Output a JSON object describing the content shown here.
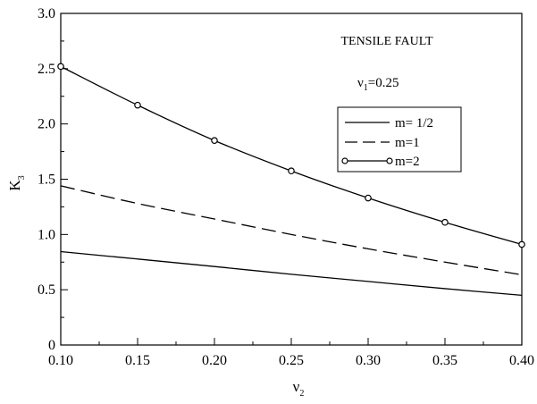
{
  "annotation": {
    "title": "TENSILE FAULT",
    "param_symbol": "ν",
    "param_sub": "1",
    "param_value": "=0.25"
  },
  "chart_data": {
    "type": "line",
    "xlabel_symbol": "ν",
    "xlabel_sub": "2",
    "ylabel_symbol": "K",
    "ylabel_sub": "3",
    "xlim": [
      0.1,
      0.4
    ],
    "ylim": [
      0,
      3.0
    ],
    "xticks": [
      "0.10",
      "0.15",
      "0.20",
      "0.25",
      "0.30",
      "0.35",
      "0.40"
    ],
    "yticks": [
      "0",
      "0.5",
      "1.0",
      "1.5",
      "2.0",
      "2.5",
      "3.0"
    ],
    "x": [
      0.1,
      0.15,
      0.2,
      0.25,
      0.3,
      0.35,
      0.4
    ],
    "legend_position": "upper-right",
    "series": [
      {
        "name": "m= 1/2",
        "style": "solid",
        "markers": false,
        "values": [
          0.845,
          0.778,
          0.71,
          0.64,
          0.575,
          0.51,
          0.45
        ]
      },
      {
        "name": "m=1",
        "style": "dashed",
        "markers": false,
        "values": [
          1.44,
          1.28,
          1.14,
          1.0,
          0.87,
          0.75,
          0.635
        ]
      },
      {
        "name": "m=2",
        "style": "solid",
        "markers": true,
        "values": [
          2.52,
          2.17,
          1.85,
          1.575,
          1.33,
          1.11,
          0.91
        ]
      }
    ],
    "colors": {
      "line": "#000000",
      "background": "#ffffff"
    }
  }
}
